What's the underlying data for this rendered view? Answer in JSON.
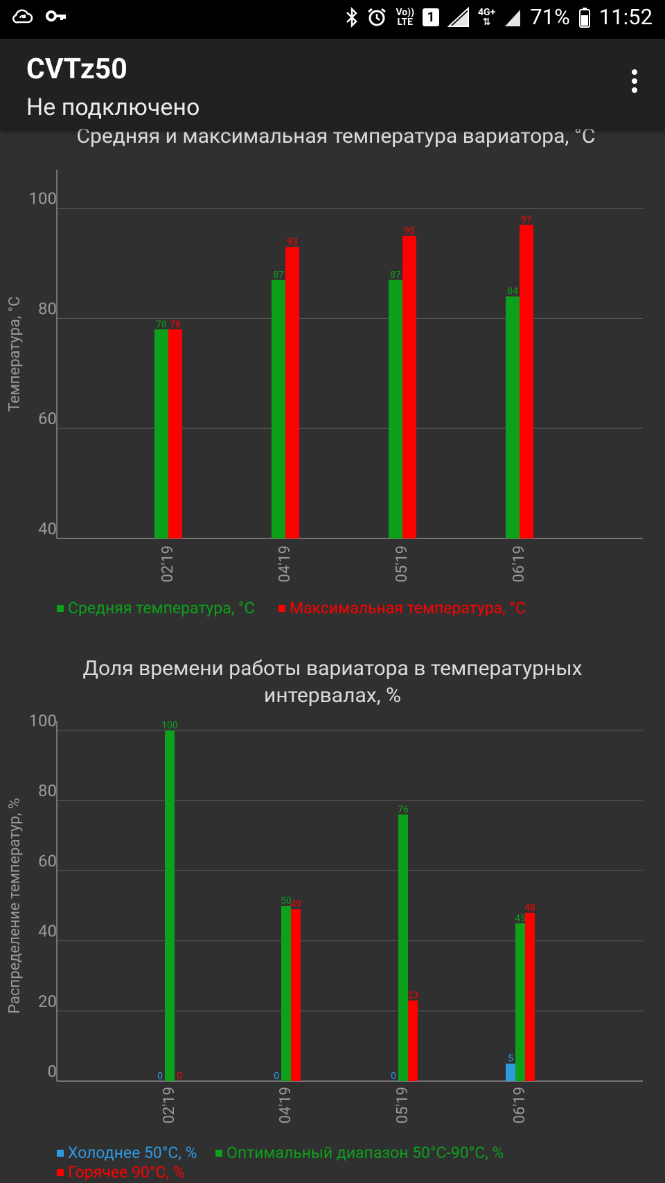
{
  "status_bar": {
    "battery": "71%",
    "time": "11:52",
    "volte_top": "Vo))",
    "volte_bottom": "LTE",
    "sim": "1",
    "network": "4G+"
  },
  "app_bar": {
    "title": "CVTz50",
    "subtitle": "Не подключено",
    "menu_icon": "more-vert-icon"
  },
  "colors": {
    "green": "#0ca01b",
    "red": "#fe0000",
    "blue": "#2e9ae0",
    "grid": "#5c5c5c",
    "axis": "#8c8c8c"
  },
  "chart_data": [
    {
      "type": "bar",
      "title": "Средняя и максимальная температура вариатора, °C",
      "ylabel": "Температура, °C",
      "categories": [
        "02'19",
        "04'19",
        "05'19",
        "06'19"
      ],
      "ylim": [
        40,
        107
      ],
      "yticks": [
        40,
        60,
        80,
        100
      ],
      "series": [
        {
          "name": "Средняя температура, °C",
          "color": "#0ca01b",
          "values": [
            78,
            87,
            87,
            84
          ]
        },
        {
          "name": "Максимальная температура, °C",
          "color": "#fe0000",
          "values": [
            78,
            93,
            95,
            97
          ]
        }
      ],
      "legend": "bottom-left"
    },
    {
      "type": "bar",
      "title": "Доля времени работы вариатора в температурных интервалах, %",
      "title_lines": [
        "Доля времени работы вариатора в температурных",
        "интервалах, %"
      ],
      "ylabel": "Распределение температур, %",
      "categories": [
        "02'19",
        "04'19",
        "05'19",
        "06'19"
      ],
      "ylim": [
        0,
        100
      ],
      "yticks": [
        0,
        20,
        40,
        60,
        80,
        100
      ],
      "series": [
        {
          "name": "Холоднее 50°C, %",
          "color": "#2e9ae0",
          "values": [
            0,
            0,
            0,
            5
          ]
        },
        {
          "name": "Оптимальный диапазон 50°C-90°C, %",
          "color": "#0ca01b",
          "values": [
            100,
            50,
            76,
            45
          ]
        },
        {
          "name": "Горячее 90°C, %",
          "color": "#fe0000",
          "values": [
            0,
            49,
            23,
            48
          ]
        }
      ],
      "legend": "bottom-left"
    }
  ]
}
